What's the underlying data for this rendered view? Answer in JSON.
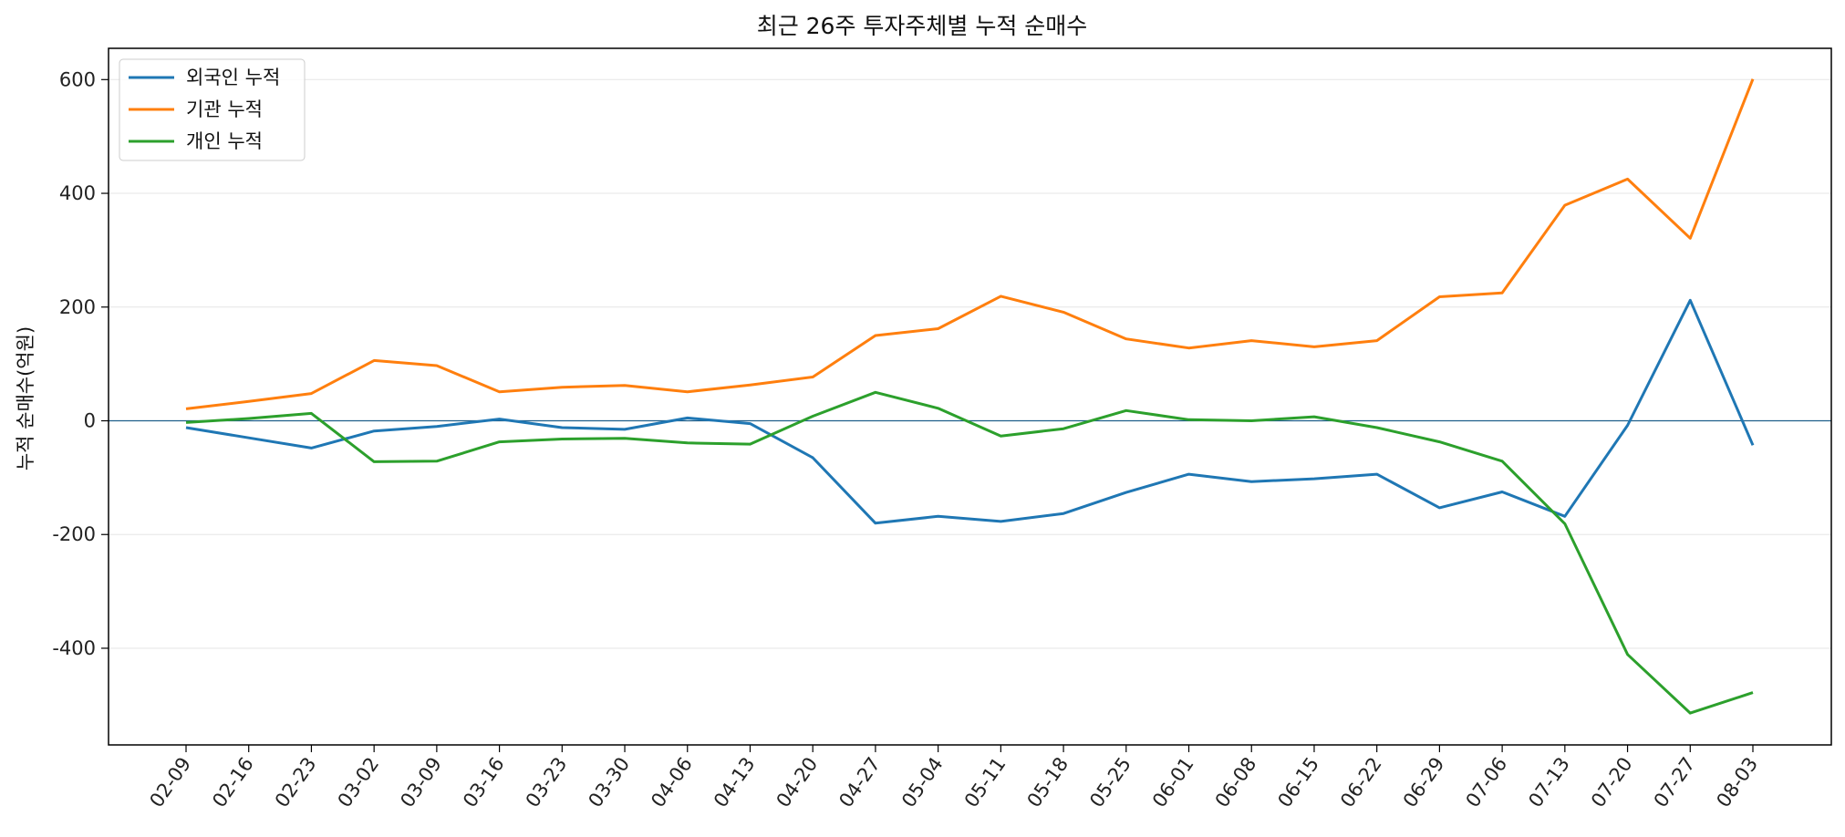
{
  "chart_data": {
    "type": "line",
    "title": "최근 26주 투자주체별 누적 순매수",
    "xlabel": "",
    "ylabel": "누적 순매수(억원)",
    "categories": [
      "02-09",
      "02-16",
      "02-23",
      "03-02",
      "03-09",
      "03-16",
      "03-23",
      "03-30",
      "04-06",
      "04-13",
      "04-20",
      "04-27",
      "05-04",
      "05-11",
      "05-18",
      "05-25",
      "06-01",
      "06-08",
      "06-15",
      "06-22",
      "06-29",
      "07-06",
      "07-13",
      "07-20",
      "07-27",
      "08-03"
    ],
    "ylim": [
      -570,
      655
    ],
    "yticks": [
      -400,
      -200,
      0,
      200,
      400,
      600
    ],
    "ytick_labels": [
      "-400",
      "-200",
      "0",
      "200",
      "400",
      "600"
    ],
    "grid": "horizontal",
    "zero_line": true,
    "legend_position": "top-left",
    "series": [
      {
        "name": "외국인 누적",
        "color": "#1f77b4",
        "values": [
          -12,
          -30,
          -48,
          -18,
          -10,
          3,
          -12,
          -15,
          5,
          -5,
          -65,
          -180,
          -168,
          -177,
          -163,
          -126,
          -94,
          -107,
          -102,
          -94,
          -153,
          -125,
          -168,
          -8,
          212,
          -43
        ]
      },
      {
        "name": "기관 누적",
        "color": "#ff7f0e",
        "values": [
          21,
          34,
          48,
          106,
          97,
          51,
          59,
          62,
          51,
          63,
          77,
          150,
          162,
          219,
          191,
          144,
          128,
          141,
          130,
          141,
          218,
          225,
          379,
          425,
          321,
          601
        ]
      },
      {
        "name": "개인 누적",
        "color": "#2ca02c",
        "values": [
          -3,
          4,
          13,
          -72,
          -71,
          -37,
          -32,
          -31,
          -39,
          -41,
          8,
          50,
          22,
          -27,
          -14,
          18,
          2,
          0,
          7,
          -12,
          -37,
          -71,
          -181,
          -411,
          -514,
          -478
        ]
      }
    ]
  }
}
